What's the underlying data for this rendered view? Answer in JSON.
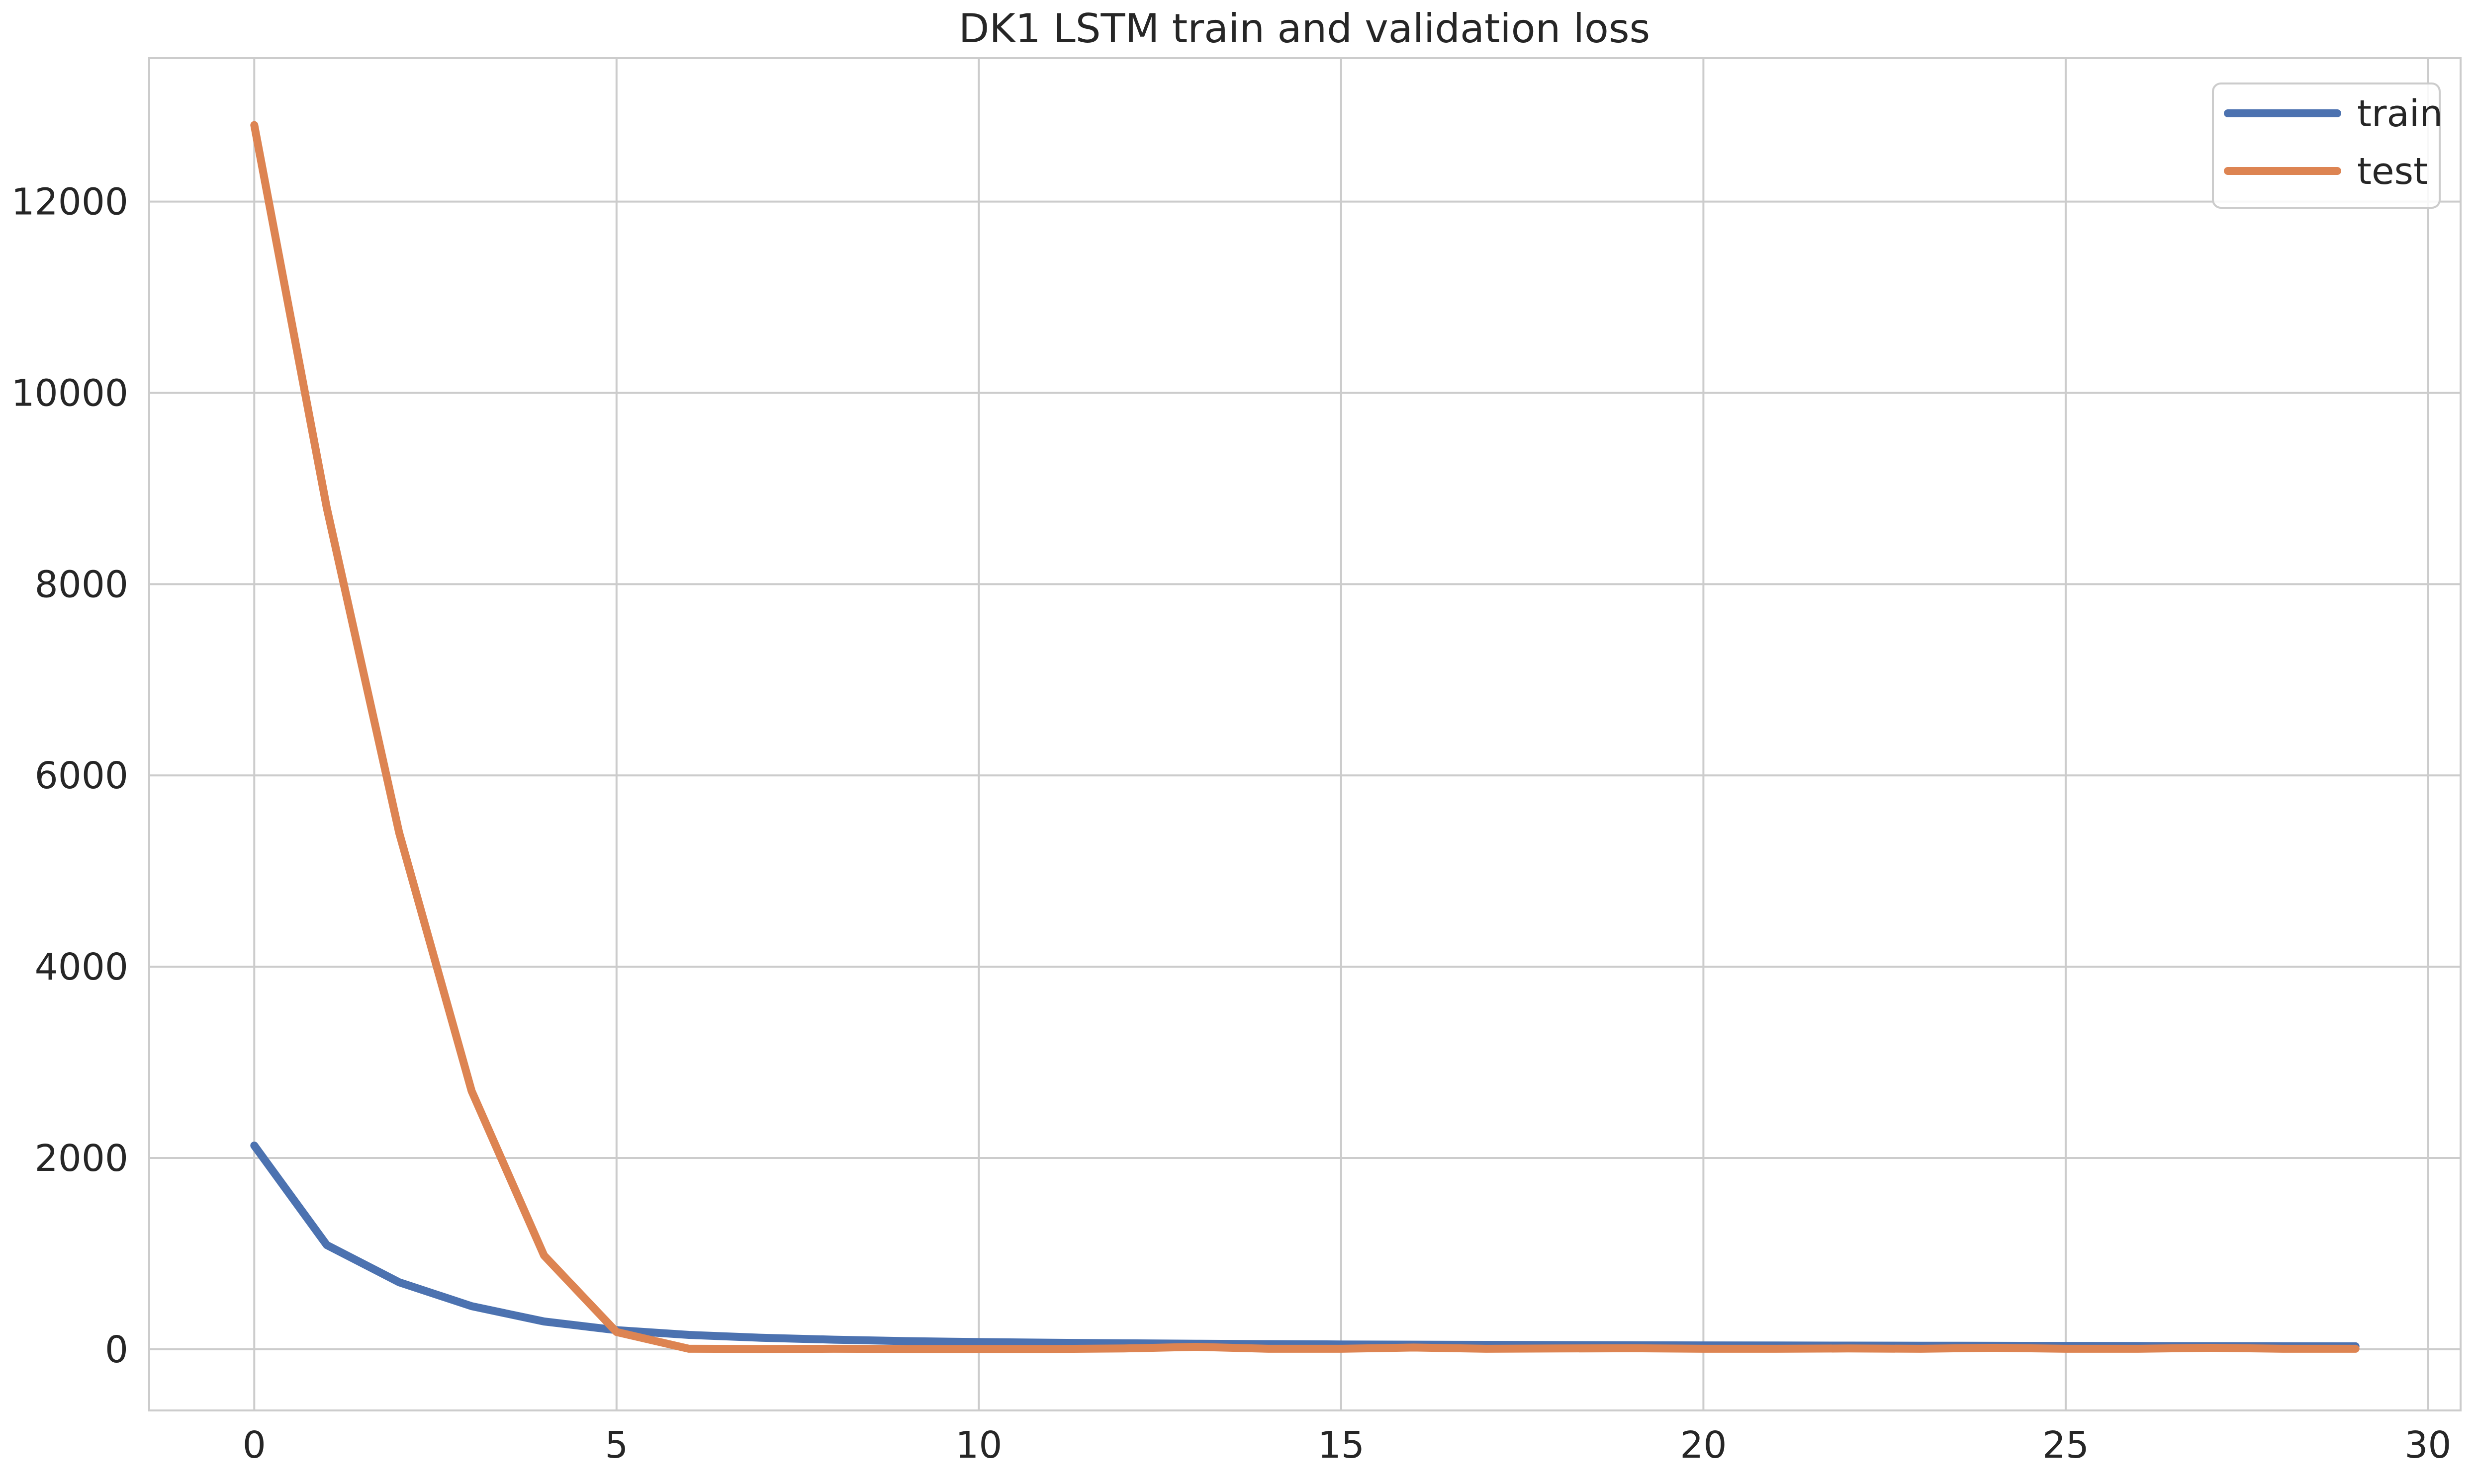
{
  "chart_data": {
    "type": "line",
    "title": "DK1 LSTM train and validation loss",
    "xlabel": "",
    "ylabel": "",
    "xlim": [
      -1.45,
      30.45
    ],
    "ylim": [
      -640,
      13500
    ],
    "xticks": [
      0,
      5,
      10,
      15,
      20,
      25,
      30
    ],
    "xtick_labels": [
      "0",
      "5",
      "10",
      "15",
      "20",
      "25",
      "30"
    ],
    "yticks": [
      0,
      2000,
      4000,
      6000,
      8000,
      10000,
      12000
    ],
    "ytick_labels": [
      "0",
      "2000",
      "4000",
      "6000",
      "8000",
      "10000",
      "12000"
    ],
    "grid": true,
    "legend_position": "top-right",
    "x": [
      0,
      1,
      2,
      3,
      4,
      5,
      6,
      7,
      8,
      9,
      10,
      11,
      12,
      13,
      14,
      15,
      16,
      17,
      18,
      19,
      20,
      21,
      22,
      23,
      24,
      25,
      26,
      27,
      28,
      29
    ],
    "series": [
      {
        "name": "train",
        "color": "#4c72b0",
        "values": [
          2130,
          1090,
          700,
          450,
          290,
          200,
          150,
          120,
          100,
          85,
          75,
          68,
          62,
          58,
          54,
          50,
          48,
          46,
          44,
          42,
          40,
          39,
          38,
          37,
          36,
          35,
          34,
          33,
          32,
          31
        ]
      },
      {
        "name": "test",
        "color": "#dd8452",
        "values": [
          12800,
          8800,
          5400,
          2700,
          980,
          180,
          5,
          3,
          5,
          3,
          3,
          3,
          8,
          25,
          5,
          5,
          18,
          5,
          8,
          10,
          5,
          5,
          8,
          5,
          15,
          5,
          5,
          15,
          5,
          5
        ]
      }
    ]
  }
}
